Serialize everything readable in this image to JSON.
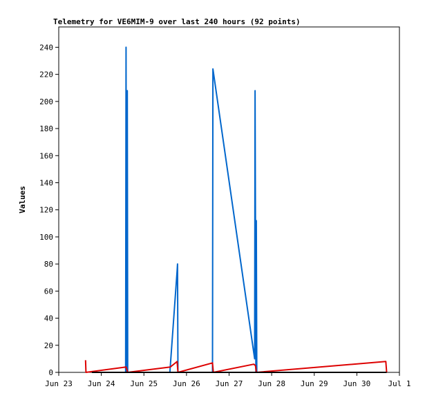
{
  "chart_data": {
    "type": "line",
    "title": "Telemetry for VE6MIM-9 over last 240 hours (92 points)",
    "xlabel": "",
    "ylabel": "Values",
    "ylim": [
      0,
      255
    ],
    "xlim": [
      0,
      8
    ],
    "y_ticks": [
      0,
      20,
      40,
      60,
      80,
      100,
      120,
      140,
      160,
      180,
      200,
      220,
      240
    ],
    "x_ticks": [
      {
        "label": "Jun 23",
        "x": 0
      },
      {
        "label": "Jun 24",
        "x": 1
      },
      {
        "label": "Jun 25",
        "x": 2
      },
      {
        "label": "Jun 26",
        "x": 3
      },
      {
        "label": "Jun 27",
        "x": 4
      },
      {
        "label": "Jun 28",
        "x": 5
      },
      {
        "label": "Jun 29",
        "x": 6
      },
      {
        "label": "Jun 30",
        "x": 7
      },
      {
        "label": "Jul 1",
        "x": 8
      }
    ],
    "grid": false,
    "legend": "none",
    "series": [
      {
        "color": "#0066cc",
        "points": [
          [
            0.78,
            0
          ],
          [
            1.57,
            0
          ],
          [
            1.58,
            240
          ],
          [
            1.59,
            0
          ],
          [
            1.61,
            208
          ],
          [
            1.62,
            0
          ],
          [
            2.61,
            0
          ],
          [
            2.78,
            75
          ],
          [
            2.79,
            80
          ],
          [
            2.8,
            0
          ],
          [
            3.61,
            0
          ],
          [
            3.62,
            224
          ],
          [
            4.6,
            10
          ],
          [
            4.61,
            208
          ],
          [
            4.63,
            0
          ],
          [
            4.64,
            112
          ],
          [
            4.65,
            0
          ],
          [
            7.7,
            0
          ]
        ]
      },
      {
        "color": "#dd0000",
        "points": [
          [
            0.63,
            9
          ],
          [
            0.64,
            0
          ],
          [
            1.58,
            4
          ],
          [
            1.62,
            0
          ],
          [
            2.62,
            4
          ],
          [
            2.78,
            8
          ],
          [
            2.8,
            0
          ],
          [
            3.61,
            7
          ],
          [
            3.63,
            0
          ],
          [
            4.58,
            6
          ],
          [
            4.62,
            5
          ],
          [
            4.64,
            0
          ],
          [
            7.68,
            8
          ],
          [
            7.7,
            0
          ]
        ]
      },
      {
        "color": "#000000",
        "points": [
          [
            0.78,
            0
          ],
          [
            7.7,
            0
          ]
        ]
      }
    ]
  }
}
